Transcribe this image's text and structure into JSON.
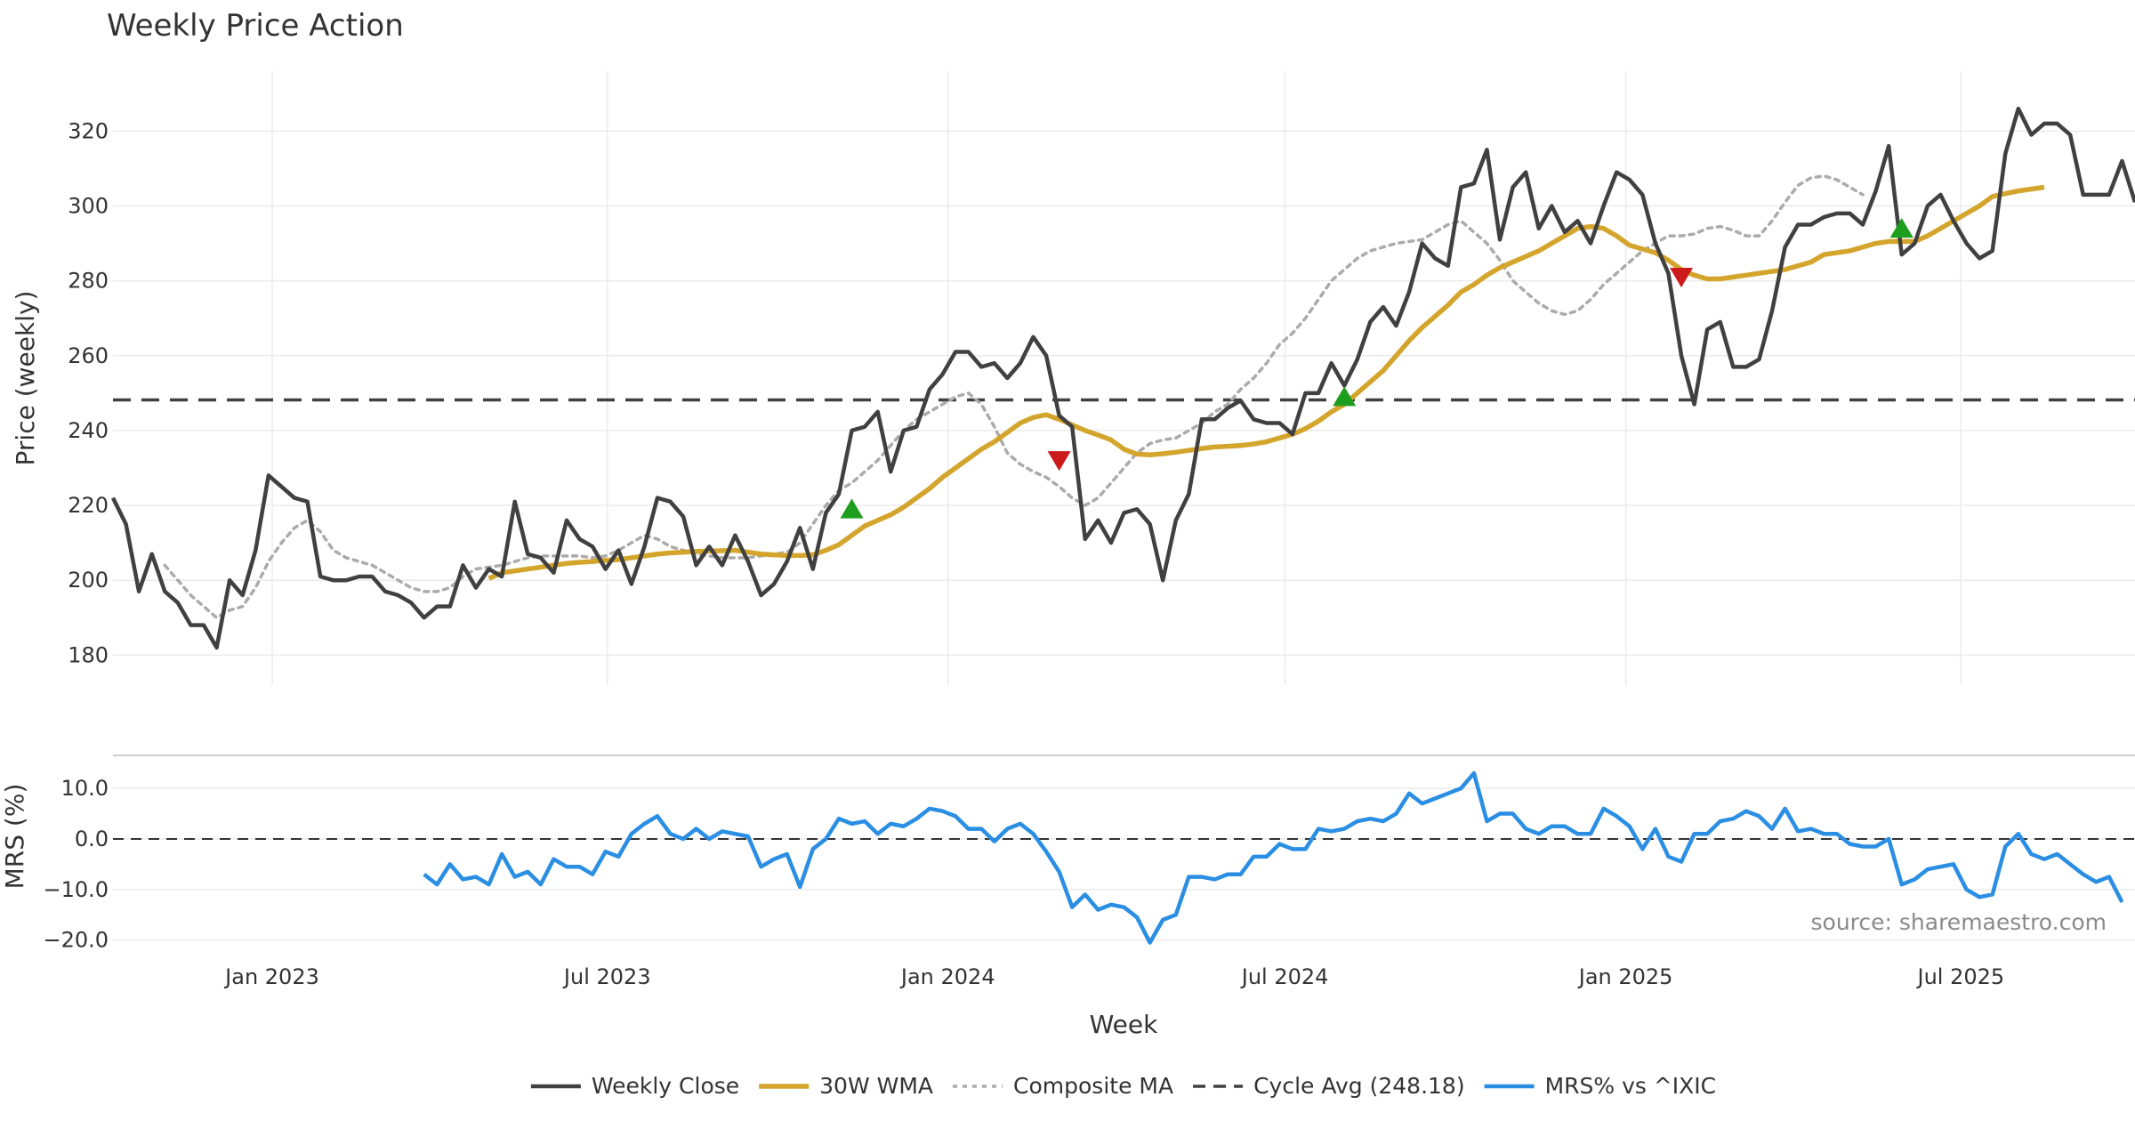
{
  "chart_data": {
    "type": "line",
    "title": "Weekly Price Action",
    "xlabel": "Week",
    "x_ticks": [
      "Jan 2023",
      "Jul 2023",
      "Jan 2024",
      "Jul 2024",
      "Jan 2025",
      "Jul 2025"
    ],
    "x_range": [
      "2022-10-07",
      "2025-10-03"
    ],
    "source": "source: sharemaestro.com",
    "colors": {
      "close": "#404040",
      "wma": "#D4A52C",
      "composite": "#ABABAB",
      "cycle": "#404040",
      "mrs": "#2A8EE3",
      "buy": "#1E9E1E",
      "sell": "#CC1B1B",
      "grid": "#EBEBEB"
    },
    "price_panel": {
      "ylabel": "Price (weekly)",
      "ylim": [
        172,
        336
      ],
      "y_ticks": [
        180,
        200,
        220,
        240,
        260,
        280,
        300,
        320
      ],
      "series": [
        {
          "name": "Weekly Close",
          "values": [
            222,
            215,
            197,
            207,
            197,
            194,
            188,
            188,
            182,
            200,
            196,
            208,
            228,
            225,
            222,
            221,
            201,
            200,
            200,
            201,
            201,
            197,
            196,
            194,
            190,
            193,
            193,
            204,
            198,
            203,
            201,
            221,
            207,
            206,
            202,
            216,
            211,
            209,
            203,
            208,
            199,
            209,
            222,
            221,
            217,
            204,
            209,
            204,
            212,
            205,
            196,
            199,
            205,
            214,
            203,
            218,
            223,
            240,
            241,
            245,
            229,
            240,
            241,
            251,
            255,
            261,
            261,
            257,
            258,
            254,
            258,
            265,
            260,
            244,
            241,
            211,
            216,
            210,
            218,
            219,
            215,
            200,
            216,
            223,
            243,
            243,
            246,
            248,
            243,
            242,
            242,
            239,
            250,
            250,
            258,
            252,
            259,
            269,
            273,
            268,
            277,
            290,
            286,
            284,
            305,
            306,
            315,
            291,
            305,
            309,
            294,
            300,
            293,
            296,
            290,
            300,
            309,
            307,
            303,
            290,
            282,
            260,
            247,
            267,
            269,
            257,
            257,
            259,
            272,
            289,
            295,
            295,
            297,
            298,
            298,
            295,
            304,
            316,
            287,
            290,
            300,
            303,
            296,
            290,
            286,
            288,
            314,
            326,
            319,
            322,
            322,
            319,
            303,
            303,
            303,
            312,
            301
          ]
        },
        {
          "name": "30W WMA",
          "start_index": 29,
          "values": [
            200.5,
            202,
            202.5,
            203,
            203.5,
            204,
            204.5,
            204.8,
            205,
            205.3,
            205.5,
            206,
            206.5,
            207,
            207.3,
            207.5,
            207.7,
            207.8,
            207.9,
            208,
            207.5,
            207,
            206.8,
            206.6,
            206.6,
            206.8,
            208,
            209.5,
            212,
            214.5,
            216,
            217.5,
            219.5,
            222,
            224.5,
            227.5,
            230,
            232.5,
            235,
            237,
            239.5,
            242,
            243.5,
            244.2,
            243,
            241.5,
            240,
            238.8,
            237.5,
            235,
            233.7,
            233.5,
            233.8,
            234.2,
            234.7,
            235.2,
            235.6,
            235.8,
            236,
            236.4,
            237,
            238,
            239,
            240.5,
            242.5,
            245,
            247,
            250,
            253,
            256,
            260,
            264,
            267.5,
            270.5,
            273.5,
            277,
            279,
            281.5,
            283.5,
            285,
            286.5,
            288,
            290,
            292,
            294,
            294.5,
            294,
            292,
            289.5,
            288.5,
            287.5,
            285.5,
            283,
            281.5,
            280.5,
            280.5,
            281,
            281.5,
            282,
            282.5,
            283,
            284,
            285,
            287,
            287.5,
            288,
            289,
            290,
            290.5,
            290.5,
            290.5,
            292,
            294,
            296,
            298,
            300,
            302.5,
            303.3,
            304,
            304.5,
            305
          ]
        },
        {
          "name": "Composite MA",
          "start_index": 4,
          "values": [
            204,
            200,
            196,
            193,
            190,
            192,
            193,
            198,
            205,
            210,
            214,
            216,
            213,
            208,
            206,
            205,
            204,
            202,
            200,
            198,
            197,
            197,
            198,
            201,
            203,
            203.5,
            204,
            205,
            206,
            206.5,
            206.5,
            206.5,
            206.5,
            206,
            206.5,
            208,
            210,
            212,
            211,
            209,
            208,
            207,
            206.5,
            206,
            206,
            206,
            206.5,
            207,
            207.5,
            210,
            215,
            220,
            224,
            226,
            229,
            232,
            236,
            240,
            243,
            245,
            247,
            249,
            250,
            247,
            241,
            234,
            231,
            229,
            227.5,
            225,
            222,
            220,
            222,
            226,
            230,
            234,
            236.5,
            237.5,
            238,
            240,
            242,
            245,
            247,
            251,
            254,
            258,
            263,
            266,
            270,
            275,
            280,
            283,
            286,
            288,
            289,
            290,
            290.5,
            291,
            293,
            295,
            296,
            293,
            290,
            285.5,
            280,
            277,
            274,
            272,
            271,
            272,
            275,
            279,
            282,
            285,
            288,
            290,
            292,
            292,
            292.5,
            294,
            294.5,
            293.5,
            292,
            292,
            296,
            301,
            305.5,
            307.5,
            308,
            307,
            305,
            303
          ]
        },
        {
          "name": "Cycle Avg (248.18)",
          "constant": 248.18
        }
      ],
      "markers": [
        {
          "type": "buy",
          "index": 57,
          "value": 219
        },
        {
          "type": "sell",
          "index": 73,
          "value": 232
        },
        {
          "type": "buy",
          "index": 95,
          "value": 249
        },
        {
          "type": "sell",
          "index": 121,
          "value": 281
        },
        {
          "type": "buy",
          "index": 138,
          "value": 294
        }
      ]
    },
    "mrs_panel": {
      "ylabel": "MRS (%)",
      "ylim": [
        -22,
        16
      ],
      "y_ticks": [
        10,
        0,
        -10,
        -20
      ],
      "y_tick_labels": [
        "10.0",
        "0.0",
        "−10.0",
        "−20.0"
      ],
      "zero_line": 0,
      "series": [
        {
          "name": "MRS% vs ^IXIC",
          "start_index": 24,
          "values": [
            -7,
            -9,
            -5,
            -8,
            -7.5,
            -9,
            -3,
            -7.5,
            -6.5,
            -9,
            -4,
            -5.5,
            -5.5,
            -7,
            -2.5,
            -3.5,
            1,
            3,
            4.5,
            1,
            0,
            2,
            0,
            1.5,
            1,
            0.5,
            -5.5,
            -4,
            -3,
            -9.5,
            -2,
            0,
            4,
            3,
            3.5,
            1,
            3,
            2.5,
            4,
            6,
            5.5,
            4.5,
            2,
            2,
            -0.5,
            2,
            3,
            1,
            -2.5,
            -6.5,
            -13.5,
            -11,
            -14,
            -13,
            -13.5,
            -15.5,
            -20.5,
            -16,
            -15,
            -7.5,
            -7.5,
            -8,
            -7,
            -7,
            -3.5,
            -3.5,
            -1,
            -2,
            -2,
            2,
            1.5,
            2,
            3.5,
            4,
            3.5,
            5,
            9,
            7,
            8,
            9,
            10,
            13,
            3.5,
            5,
            5,
            2,
            1,
            2.5,
            2.5,
            1,
            1,
            6,
            4.5,
            2.5,
            -2,
            2,
            -3.5,
            -4.5,
            1,
            1,
            3.5,
            4,
            5.5,
            4.5,
            2,
            6,
            1.5,
            2,
            1,
            1,
            -1,
            -1.5,
            -1.5,
            0,
            -9,
            -8,
            -6,
            -5.5,
            -5,
            -10,
            -11.5,
            -11,
            -1.5,
            1,
            -3,
            -4,
            -3,
            -5,
            -7,
            -8.5,
            -7.5,
            -12.5
          ]
        }
      ]
    },
    "legend": [
      {
        "label": "Weekly Close",
        "style": "solid-dark"
      },
      {
        "label": "30W WMA",
        "style": "solid-gold"
      },
      {
        "label": "Composite MA",
        "style": "dotted-gray"
      },
      {
        "label": "Cycle Avg (248.18)",
        "style": "dashed-dark"
      },
      {
        "label": "MRS% vs ^IXIC",
        "style": "solid-blue"
      }
    ]
  }
}
